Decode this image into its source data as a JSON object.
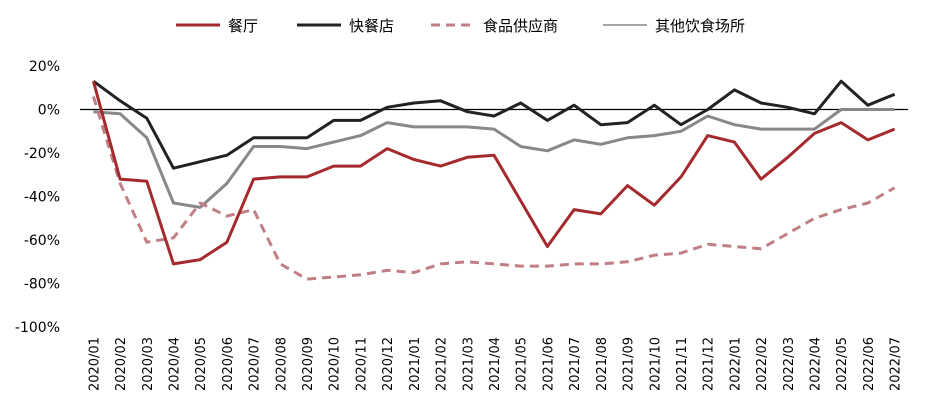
{
  "chart_data": {
    "type": "line",
    "x": [
      "2020/01",
      "2020/02",
      "2020/03",
      "2020/04",
      "2020/05",
      "2020/06",
      "2020/07",
      "2020/08",
      "2020/09",
      "2020/10",
      "2020/11",
      "2020/12",
      "2021/01",
      "2021/02",
      "2021/03",
      "2021/04",
      "2021/05",
      "2021/06",
      "2021/07",
      "2021/08",
      "2021/09",
      "2021/10",
      "2021/11",
      "2021/12",
      "2022/01",
      "2022/02",
      "2022/03",
      "2022/04",
      "2022/05",
      "2022/06",
      "2022/07"
    ],
    "ylim": [
      -100,
      20
    ],
    "yticks": [
      20,
      0,
      -20,
      -40,
      -60,
      -80,
      -100
    ],
    "ytick_labels": [
      "20%",
      "0%",
      "-20%",
      "-40%",
      "-60%",
      "-80%",
      "-100%"
    ],
    "legend_position": "top",
    "grid": false,
    "series": [
      {
        "name": "餐厅",
        "color": "#a52a2e",
        "style": "solid",
        "width": 3,
        "values": [
          13,
          -32,
          -33,
          -71,
          -69,
          -61,
          -32,
          -31,
          -31,
          -26,
          -26,
          -18,
          -23,
          -26,
          -22,
          -21,
          -42,
          -63,
          -46,
          -48,
          -35,
          -44,
          -31,
          -12,
          -15,
          -32,
          -22,
          -11,
          -6,
          -14,
          -9
        ]
      },
      {
        "name": "快餐店",
        "color": "#222222",
        "style": "solid",
        "width": 3,
        "values": [
          13,
          4,
          -4,
          -27,
          -24,
          -21,
          -13,
          -13,
          -13,
          -5,
          -5,
          1,
          3,
          4,
          -1,
          -3,
          3,
          -5,
          2,
          -7,
          -6,
          2,
          -7,
          0,
          9,
          3,
          1,
          -2,
          13,
          2,
          7
        ]
      },
      {
        "name": "食品供应商",
        "color": "#c07f84",
        "style": "dashed",
        "width": 3,
        "values": [
          6,
          -34,
          -61,
          -59,
          -43,
          -49,
          -46,
          -71,
          -78,
          -77,
          -76,
          -74,
          -75,
          -71,
          -70,
          -71,
          -72,
          -72,
          -71,
          -71,
          -70,
          -67,
          -66,
          -62,
          -63,
          -64,
          -57,
          -50,
          -46,
          -43,
          -36
        ]
      },
      {
        "name": "其他饮食场所",
        "color": "#888888",
        "style": "solid",
        "width": 3,
        "values": [
          -1,
          -2,
          -13,
          -43,
          -45,
          -34,
          -17,
          -17,
          -18,
          -15,
          -12,
          -6,
          -8,
          -8,
          -8,
          -9,
          -17,
          -19,
          -14,
          -16,
          -13,
          -12,
          -10,
          -3,
          -7,
          -9,
          -9,
          -9,
          0,
          0,
          0
        ]
      }
    ]
  }
}
